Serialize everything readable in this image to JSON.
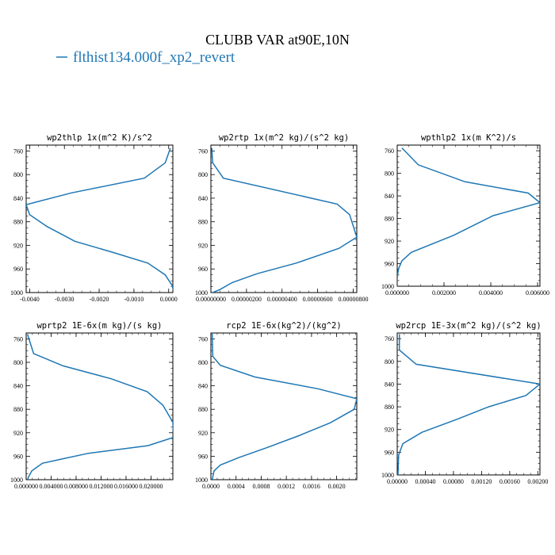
{
  "figure": {
    "title": "CLUBB VAR at90E,10N",
    "legend": {
      "label": "flthist134.000f_xp2_revert",
      "color": "#1f77b4"
    }
  },
  "chart_data": [
    {
      "type": "line",
      "title": "wp2thlp  1x(m^2 K)/s^2",
      "xlim": [
        -0.0041,
        0.00012
      ],
      "ylim": [
        1000,
        750
      ],
      "xticks": [
        -0.004,
        -0.003,
        -0.002,
        -0.001,
        0.0
      ],
      "xticklabels": [
        "-0.0040",
        "-0.0030",
        "-0.0020",
        "-0.0010",
        "0.0000"
      ],
      "yticks": [
        760,
        800,
        840,
        880,
        920,
        960,
        1000
      ],
      "series": [
        {
          "x": [
            5e-05,
            -0.0001,
            -0.0007,
            -0.0028,
            -0.0041,
            -0.004,
            -0.0035,
            -0.0027,
            -0.0016,
            -0.0006,
            -0.0001,
            0.0001,
            0.00015
          ],
          "y": [
            755,
            780,
            806,
            831,
            851,
            868,
            888,
            913,
            932,
            950,
            970,
            988,
            1000
          ]
        }
      ]
    },
    {
      "type": "line",
      "title": "wp2rtp  1x(m^2 kg)/(s^2 kg)",
      "xlim": [
        0.0,
        8.2e-07
      ],
      "ylim": [
        1000,
        750
      ],
      "xticks": [
        0.0,
        2e-07,
        4e-07,
        6e-07,
        8e-07
      ],
      "xticklabels": [
        "0.00000000",
        "0.00000200",
        "0.00000400",
        "0.00000600",
        "0.00000800"
      ],
      "yticks": [
        760,
        800,
        840,
        880,
        920,
        960,
        1000
      ],
      "series": [
        {
          "x": [
            5e-09,
            1e-08,
            7e-08,
            7.1e-07,
            7.8e-07,
            8.2e-07,
            7.2e-07,
            4.8e-07,
            2.6e-07,
            1.2e-07,
            5e-08,
            1e-08
          ],
          "y": [
            755,
            780,
            806,
            850,
            868,
            906,
            925,
            950,
            968,
            983,
            995,
            1000
          ]
        }
      ]
    },
    {
      "type": "line",
      "title": "wpthlp2  1x(m K^2)/s",
      "xlim": [
        0.0,
        0.0061
      ],
      "ylim": [
        1000,
        750
      ],
      "xticks": [
        0.0,
        0.002,
        0.004,
        0.006
      ],
      "xticklabels": [
        "0.000000",
        "0.002000",
        "0.004000",
        "0.006000"
      ],
      "yticks": [
        760,
        800,
        840,
        880,
        920,
        960,
        1000
      ],
      "series": [
        {
          "x": [
            0.0002,
            0.0009,
            0.0029,
            0.0056,
            0.0061,
            0.0041,
            0.0024,
            0.0006,
            0.0002,
            5e-05,
            0.0,
            0.0
          ],
          "y": [
            755,
            785,
            815,
            835,
            852,
            875,
            910,
            940,
            955,
            970,
            985,
            1000
          ]
        }
      ]
    },
    {
      "type": "line",
      "title": "wprtp2  1E-6x(m kg)/(s kg)",
      "xlim": [
        0.0,
        0.0235
      ],
      "ylim": [
        1000,
        750
      ],
      "xticks": [
        0.0,
        0.004,
        0.008,
        0.012,
        0.016,
        0.02
      ],
      "xticklabels": [
        "0.000000",
        "0.004000",
        "0.008000",
        "0.012000",
        "0.016000",
        "0.020000"
      ],
      "yticks": [
        760,
        800,
        840,
        880,
        920,
        960,
        1000
      ],
      "series": [
        {
          "x": [
            0.0002,
            0.0012,
            0.0059,
            0.0136,
            0.0194,
            0.0219,
            0.0235,
            0.0236,
            0.0195,
            0.01,
            0.0056,
            0.0026,
            0.0009,
            0.0004,
            0.0002
          ],
          "y": [
            752,
            785,
            806,
            828,
            850,
            873,
            902,
            928,
            942,
            955,
            965,
            972,
            985,
            995,
            1000
          ]
        }
      ]
    },
    {
      "type": "line",
      "title": "rcp2  1E-6x(kg^2)/(kg^2)",
      "xlim": [
        0.0,
        0.00232
      ],
      "ylim": [
        1000,
        750
      ],
      "xticks": [
        0.0,
        0.0004,
        0.0008,
        0.0012,
        0.0016,
        0.002
      ],
      "xticklabels": [
        "0.0000",
        "0.0004",
        "0.0008",
        "0.0012",
        "0.0016",
        "0.0020"
      ],
      "yticks": [
        760,
        800,
        840,
        880,
        920,
        960,
        1000
      ],
      "series": [
        {
          "x": [
            2e-05,
            3e-05,
            0.00015,
            0.0007,
            0.0017,
            0.00232,
            0.00228,
            0.0019,
            0.0014,
            0.0009,
            0.00045,
            0.00015,
            5e-05,
            2e-05
          ],
          "y": [
            750,
            790,
            805,
            825,
            845,
            862,
            880,
            903,
            925,
            945,
            962,
            975,
            985,
            1000
          ]
        }
      ]
    },
    {
      "type": "line",
      "title": "wp2rcp  1E-3x(m^2 kg)/(s^2 kg)",
      "xlim": [
        0.0,
        0.00203
      ],
      "ylim": [
        1000,
        750
      ],
      "xticks": [
        0.0,
        0.0004,
        0.0008,
        0.0012,
        0.0016,
        0.002
      ],
      "xticklabels": [
        "0.00000",
        "0.00040",
        "0.00080",
        "0.00120",
        "0.00160",
        "0.00200"
      ],
      "yticks": [
        760,
        800,
        840,
        880,
        920,
        960,
        1000
      ],
      "series": [
        {
          "x": [
            3e-05,
            3e-05,
            0.00027,
            0.00203,
            0.00183,
            0.0013,
            0.00085,
            0.00035,
            8e-05,
            2e-05,
            1e-05
          ],
          "y": [
            752,
            780,
            805,
            840,
            860,
            880,
            902,
            925,
            945,
            965,
            1000
          ]
        }
      ]
    }
  ]
}
